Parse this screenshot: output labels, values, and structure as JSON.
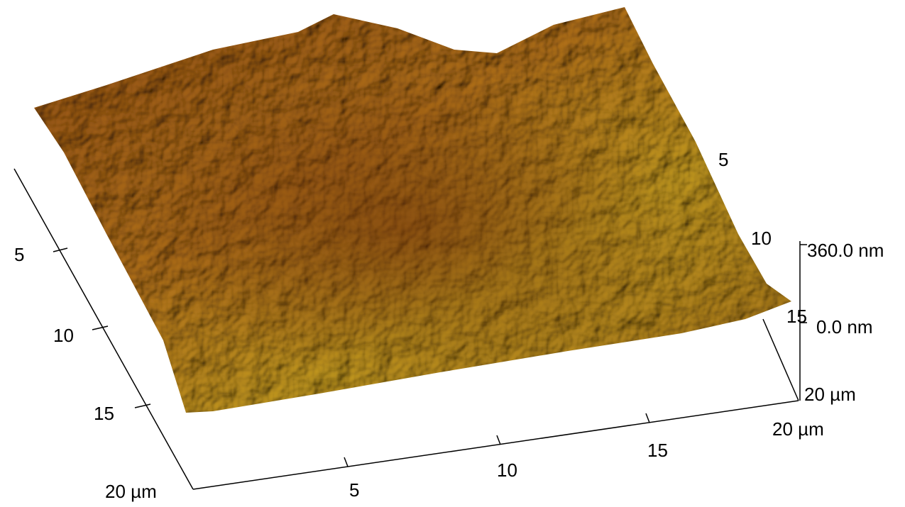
{
  "left_axis": {
    "ticks": [
      "5",
      "10",
      "15",
      "20 µm"
    ]
  },
  "bottom_axis": {
    "ticks": [
      "5",
      "10",
      "15",
      "20 µm"
    ]
  },
  "right_axis": {
    "ticks": [
      "5",
      "10",
      "15",
      "20 µm"
    ]
  },
  "z_axis": {
    "ticks": [
      "360.0 nm",
      "0.0 nm"
    ]
  }
}
